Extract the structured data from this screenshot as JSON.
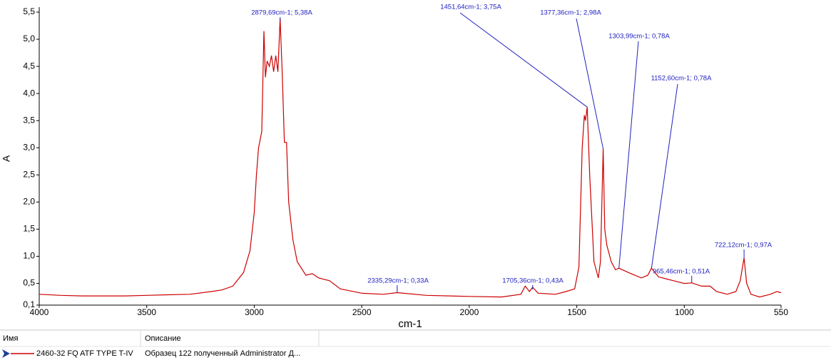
{
  "chart_data": {
    "type": "line",
    "xlabel": "cm-1",
    "ylabel": "A",
    "xlim": [
      4000,
      550
    ],
    "ylim": [
      0.1,
      5.5
    ],
    "xticks": [
      4000,
      3500,
      3000,
      2500,
      2000,
      1500,
      1000,
      550
    ],
    "yticks": [
      {
        "value": 0.1,
        "label": "0,1"
      },
      {
        "value": 0.5,
        "label": "0,5"
      },
      {
        "value": 1.0,
        "label": "1,0"
      },
      {
        "value": 1.5,
        "label": "1,5"
      },
      {
        "value": 2.0,
        "label": "2,0"
      },
      {
        "value": 2.5,
        "label": "2,5"
      },
      {
        "value": 3.0,
        "label": "3,0"
      },
      {
        "value": 3.5,
        "label": "3,5"
      },
      {
        "value": 4.0,
        "label": "4,0"
      },
      {
        "value": 4.5,
        "label": "4,5"
      },
      {
        "value": 5.0,
        "label": "5,0"
      },
      {
        "value": 5.5,
        "label": "5,5"
      }
    ],
    "x": [
      4000,
      3900,
      3800,
      3600,
      3500,
      3400,
      3300,
      3200,
      3150,
      3100,
      3050,
      3020,
      3000,
      2990,
      2980,
      2965,
      2955,
      2948,
      2940,
      2930,
      2920,
      2910,
      2900,
      2890,
      2879.69,
      2870,
      2860,
      2850,
      2840,
      2820,
      2800,
      2760,
      2730,
      2700,
      2650,
      2600,
      2500,
      2400,
      2335.29,
      2200,
      2000,
      1850,
      1760,
      1740,
      1720,
      1705.36,
      1680,
      1600,
      1550,
      1510,
      1490,
      1475,
      1465,
      1460,
      1451.64,
      1440,
      1420,
      1400,
      1390,
      1377.36,
      1370,
      1360,
      1340,
      1320,
      1303.99,
      1260,
      1200,
      1170,
      1152.6,
      1120,
      1080,
      1050,
      1000,
      965.46,
      920,
      880,
      850,
      800,
      760,
      740,
      722.12,
      710,
      690,
      650,
      600,
      570,
      550
    ],
    "series": [
      {
        "name": "2460-32 FQ ATF TYPE T-IV",
        "color": "#cc0000",
        "values": [
          0.3,
          0.28,
          0.27,
          0.27,
          0.28,
          0.29,
          0.3,
          0.35,
          0.38,
          0.45,
          0.7,
          1.1,
          1.8,
          2.5,
          3.0,
          3.3,
          5.15,
          4.3,
          4.6,
          4.5,
          4.7,
          4.4,
          4.7,
          4.4,
          5.38,
          4.4,
          3.1,
          3.1,
          2.0,
          1.3,
          0.9,
          0.65,
          0.68,
          0.6,
          0.55,
          0.4,
          0.32,
          0.3,
          0.33,
          0.28,
          0.26,
          0.25,
          0.3,
          0.45,
          0.35,
          0.43,
          0.32,
          0.3,
          0.35,
          0.4,
          0.8,
          3.0,
          3.6,
          3.5,
          3.75,
          2.5,
          0.9,
          0.6,
          0.9,
          2.98,
          1.5,
          1.2,
          0.9,
          0.75,
          0.78,
          0.7,
          0.6,
          0.65,
          0.78,
          0.62,
          0.58,
          0.55,
          0.5,
          0.51,
          0.45,
          0.45,
          0.35,
          0.3,
          0.35,
          0.55,
          0.97,
          0.5,
          0.3,
          0.25,
          0.3,
          0.35,
          0.33
        ]
      }
    ],
    "annotation_color": "#2020c0",
    "annotations": [
      {
        "x": 2879.69,
        "y": 5.38,
        "label": "2879,69cm-1; 5,38A"
      },
      {
        "x": 1451.64,
        "y": 3.75,
        "label": "1451,64cm-1; 3,75A"
      },
      {
        "x": 1377.36,
        "y": 2.98,
        "label": "1377,36cm-1; 2,98A"
      },
      {
        "x": 1303.99,
        "y": 0.78,
        "label": "1303,99cm-1; 0,78A"
      },
      {
        "x": 1152.6,
        "y": 0.78,
        "label": "1152,60cm-1; 0,78A"
      },
      {
        "x": 965.46,
        "y": 0.51,
        "label": "965,46cm-1; 0,51A"
      },
      {
        "x": 722.12,
        "y": 0.97,
        "label": "722,12cm-1; 0,97A"
      },
      {
        "x": 1705.36,
        "y": 0.43,
        "label": "1705,36cm-1; 0,43A"
      },
      {
        "x": 2335.29,
        "y": 0.33,
        "label": "2335,29cm-1; 0,33A"
      }
    ]
  },
  "table": {
    "headers": [
      "Имя",
      "Описание"
    ],
    "description": "Образец 122 полученный Administrator Д..."
  }
}
